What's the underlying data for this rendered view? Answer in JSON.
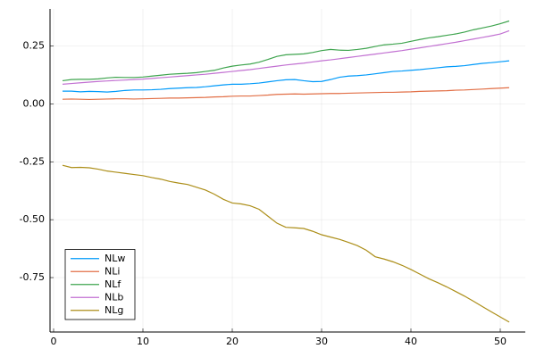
{
  "chart_data": {
    "type": "line",
    "x": [
      1,
      2,
      3,
      4,
      5,
      6,
      7,
      8,
      9,
      10,
      11,
      12,
      13,
      14,
      15,
      16,
      17,
      18,
      19,
      20,
      21,
      22,
      23,
      24,
      25,
      26,
      27,
      28,
      29,
      30,
      31,
      32,
      33,
      34,
      35,
      36,
      37,
      38,
      39,
      40,
      41,
      42,
      43,
      44,
      45,
      46,
      47,
      48,
      49,
      50,
      51
    ],
    "series": [
      {
        "name": "NLw",
        "color": "#009afa",
        "values": [
          0.055,
          0.055,
          0.052,
          0.054,
          0.053,
          0.051,
          0.054,
          0.058,
          0.06,
          0.06,
          0.061,
          0.063,
          0.066,
          0.068,
          0.07,
          0.071,
          0.074,
          0.078,
          0.082,
          0.085,
          0.085,
          0.087,
          0.09,
          0.095,
          0.1,
          0.104,
          0.105,
          0.1,
          0.096,
          0.097,
          0.105,
          0.115,
          0.12,
          0.122,
          0.125,
          0.13,
          0.135,
          0.14,
          0.142,
          0.145,
          0.148,
          0.152,
          0.156,
          0.16,
          0.162,
          0.165,
          0.17,
          0.175,
          0.178,
          0.182,
          0.186
        ]
      },
      {
        "name": "NLi",
        "color": "#e26f46",
        "values": [
          0.02,
          0.021,
          0.02,
          0.019,
          0.02,
          0.021,
          0.022,
          0.022,
          0.021,
          0.022,
          0.023,
          0.024,
          0.025,
          0.025,
          0.026,
          0.027,
          0.028,
          0.03,
          0.031,
          0.033,
          0.034,
          0.034,
          0.036,
          0.038,
          0.041,
          0.042,
          0.043,
          0.042,
          0.043,
          0.044,
          0.045,
          0.045,
          0.046,
          0.047,
          0.048,
          0.049,
          0.05,
          0.05,
          0.051,
          0.052,
          0.054,
          0.055,
          0.056,
          0.057,
          0.059,
          0.06,
          0.062,
          0.064,
          0.066,
          0.068,
          0.07
        ]
      },
      {
        "name": "NLf",
        "color": "#3ea44e",
        "values": [
          0.1,
          0.105,
          0.106,
          0.106,
          0.108,
          0.112,
          0.115,
          0.114,
          0.114,
          0.116,
          0.12,
          0.124,
          0.128,
          0.13,
          0.132,
          0.135,
          0.14,
          0.145,
          0.155,
          0.163,
          0.168,
          0.172,
          0.18,
          0.192,
          0.205,
          0.212,
          0.214,
          0.216,
          0.222,
          0.23,
          0.235,
          0.232,
          0.231,
          0.235,
          0.24,
          0.248,
          0.255,
          0.258,
          0.262,
          0.27,
          0.278,
          0.285,
          0.29,
          0.296,
          0.302,
          0.31,
          0.32,
          0.328,
          0.336,
          0.346,
          0.358
        ]
      },
      {
        "name": "NLb",
        "color": "#c271d2",
        "values": [
          0.085,
          0.088,
          0.091,
          0.094,
          0.097,
          0.099,
          0.101,
          0.103,
          0.105,
          0.107,
          0.11,
          0.113,
          0.116,
          0.119,
          0.122,
          0.125,
          0.128,
          0.132,
          0.136,
          0.14,
          0.144,
          0.148,
          0.153,
          0.158,
          0.163,
          0.168,
          0.172,
          0.176,
          0.181,
          0.186,
          0.19,
          0.195,
          0.2,
          0.205,
          0.21,
          0.215,
          0.22,
          0.225,
          0.23,
          0.236,
          0.242,
          0.248,
          0.254,
          0.26,
          0.266,
          0.273,
          0.28,
          0.287,
          0.294,
          0.302,
          0.316
        ]
      },
      {
        "name": "NLg",
        "color": "#ac8e18",
        "values": [
          -0.265,
          -0.275,
          -0.274,
          -0.276,
          -0.282,
          -0.29,
          -0.295,
          -0.3,
          -0.305,
          -0.31,
          -0.318,
          -0.325,
          -0.335,
          -0.342,
          -0.348,
          -0.36,
          -0.372,
          -0.39,
          -0.412,
          -0.428,
          -0.432,
          -0.44,
          -0.455,
          -0.485,
          -0.515,
          -0.533,
          -0.535,
          -0.538,
          -0.55,
          -0.565,
          -0.575,
          -0.585,
          -0.598,
          -0.612,
          -0.632,
          -0.66,
          -0.67,
          -0.682,
          -0.697,
          -0.715,
          -0.735,
          -0.755,
          -0.772,
          -0.79,
          -0.81,
          -0.83,
          -0.852,
          -0.875,
          -0.898,
          -0.92,
          -0.942
        ]
      }
    ],
    "xlim": [
      -0.4,
      52.8
    ],
    "xticks": [
      0,
      10,
      20,
      30,
      40,
      50
    ],
    "ylim": [
      -0.985,
      0.41
    ],
    "yticks": [
      0.25,
      {
        "value": 0,
        "label": "0.00"
      },
      -0.25,
      {
        "value": -0.5,
        "label": "-0.50"
      },
      -0.75
    ],
    "grid": true,
    "legend": "bottom-left"
  }
}
